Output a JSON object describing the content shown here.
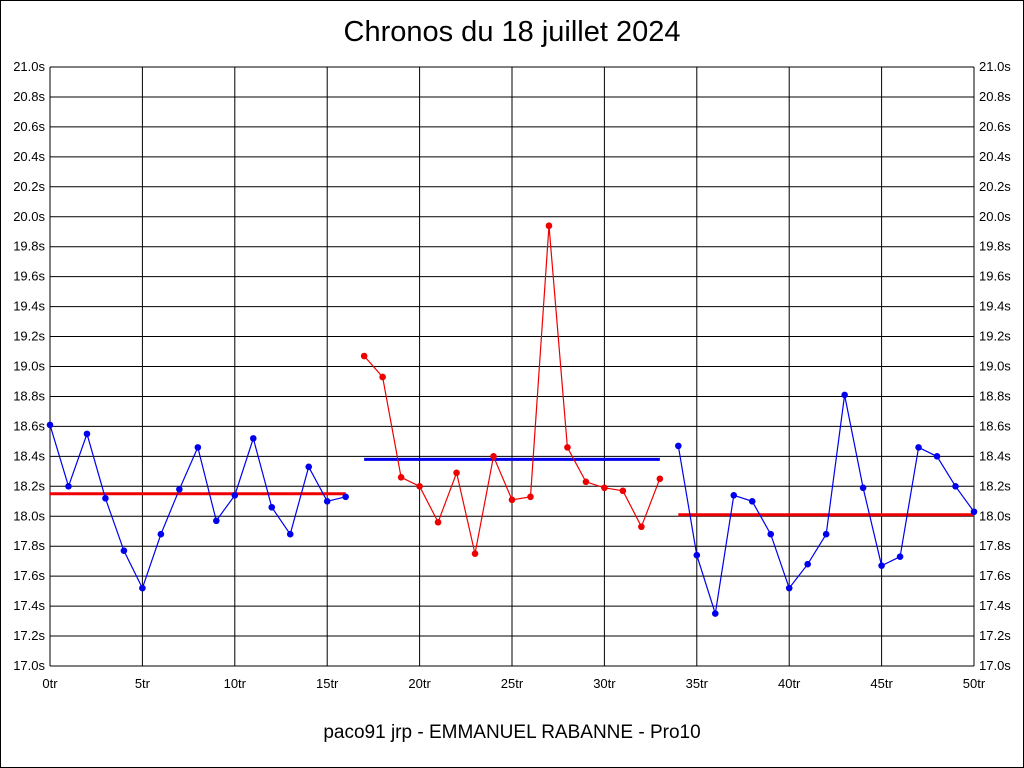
{
  "chart_data": {
    "type": "line",
    "title": "Chronos du 18 juillet 2024",
    "footer": "paco91 jrp - EMMANUEL RABANNE - Pro10",
    "xlabel": "",
    "ylabel": "",
    "xlim": [
      0,
      50
    ],
    "ylim": [
      17.0,
      21.0
    ],
    "x_ticks": [
      "0tr",
      "5tr",
      "10tr",
      "15tr",
      "20tr",
      "25tr",
      "30tr",
      "35tr",
      "40tr",
      "45tr",
      "50tr"
    ],
    "y_ticks": [
      "17.0s",
      "17.2s",
      "17.4s",
      "17.6s",
      "17.8s",
      "18.0s",
      "18.2s",
      "18.4s",
      "18.6s",
      "18.8s",
      "19.0s",
      "19.2s",
      "19.4s",
      "19.6s",
      "19.8s",
      "20.0s",
      "20.2s",
      "20.4s",
      "20.6s",
      "20.8s",
      "21.0s"
    ],
    "grid": true,
    "legend": "none",
    "series": [
      {
        "color": "#0000ee",
        "points": [
          [
            0,
            18.61
          ],
          [
            1,
            18.2
          ],
          [
            2,
            18.55
          ],
          [
            3,
            18.12
          ],
          [
            4,
            17.77
          ],
          [
            5,
            17.52
          ],
          [
            6,
            17.88
          ],
          [
            7,
            18.18
          ],
          [
            8,
            18.46
          ],
          [
            9,
            17.97
          ],
          [
            10,
            18.14
          ],
          [
            11,
            18.52
          ],
          [
            12,
            18.06
          ],
          [
            13,
            17.88
          ],
          [
            14,
            18.33
          ],
          [
            15,
            18.1
          ],
          [
            16,
            18.13
          ]
        ]
      },
      {
        "color": "#ee0000",
        "points": [
          [
            17,
            19.07
          ],
          [
            18,
            18.93
          ],
          [
            19,
            18.26
          ],
          [
            20,
            18.2
          ],
          [
            21,
            17.96
          ],
          [
            22,
            18.29
          ],
          [
            23,
            17.75
          ],
          [
            24,
            18.4
          ],
          [
            25,
            18.11
          ],
          [
            26,
            18.13
          ],
          [
            27,
            19.94
          ],
          [
            28,
            18.46
          ],
          [
            29,
            18.23
          ],
          [
            30,
            18.19
          ],
          [
            31,
            18.17
          ],
          [
            32,
            17.93
          ],
          [
            33,
            18.25
          ]
        ]
      },
      {
        "color": "#0000ee",
        "points": [
          [
            34,
            18.47
          ],
          [
            35,
            17.74
          ],
          [
            36,
            17.35
          ],
          [
            37,
            18.14
          ],
          [
            38,
            18.1
          ],
          [
            39,
            17.88
          ],
          [
            40,
            17.52
          ],
          [
            41,
            17.68
          ],
          [
            42,
            17.88
          ],
          [
            43,
            18.81
          ],
          [
            44,
            18.19
          ],
          [
            45,
            17.67
          ],
          [
            46,
            17.73
          ],
          [
            47,
            18.46
          ],
          [
            48,
            18.4
          ],
          [
            49,
            18.2
          ],
          [
            50,
            18.03
          ]
        ]
      }
    ],
    "averages": [
      {
        "color": "#ee0000",
        "x_from": 0,
        "x_to": 16,
        "value": 18.15
      },
      {
        "color": "#0000ee",
        "x_from": 17,
        "x_to": 33,
        "value": 18.38
      },
      {
        "color": "#ee0000",
        "x_from": 34,
        "x_to": 50,
        "value": 18.01
      }
    ]
  }
}
